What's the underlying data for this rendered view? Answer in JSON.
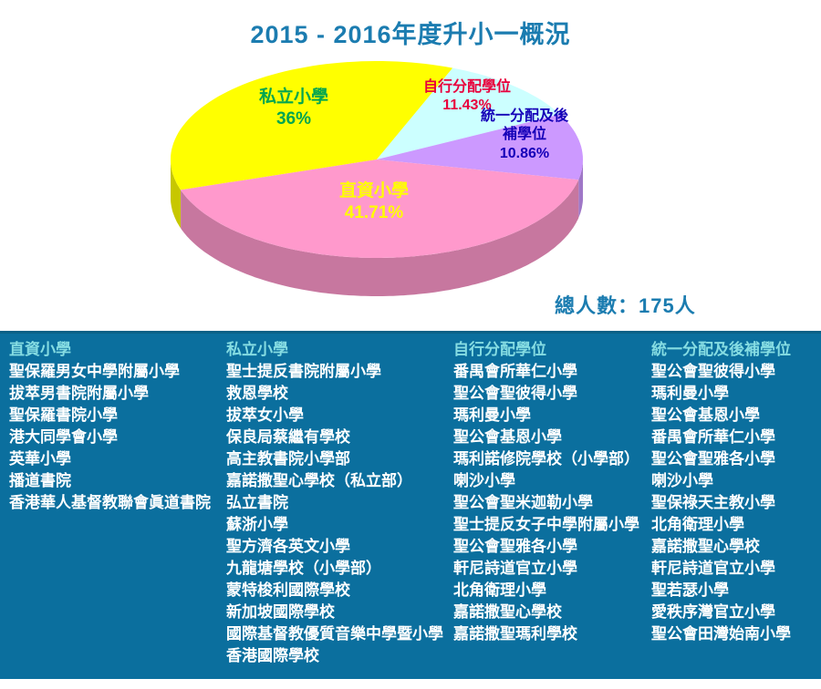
{
  "title": "2015 - 2016年度升小一概況",
  "total_label": "總人數：175人",
  "chart_data": {
    "type": "pie",
    "style": "3d",
    "title": "2015 - 2016年度升小一概況",
    "start_angle_deg": 198,
    "legend_position": "none",
    "slices": [
      {
        "label": "私立小學",
        "value": 36,
        "pct_label": "36%",
        "color": "#FFFF00",
        "label_color": "#00A550"
      },
      {
        "label": "自行分配學位",
        "value": 11.43,
        "pct_label": "11.43%",
        "color": "#CCFFFF",
        "label_color": "#E8003C"
      },
      {
        "label": "統一分配及後補學位",
        "value": 10.86,
        "pct_label": "10.86%",
        "color": "#CC99FF",
        "label_color": "#1500B8"
      },
      {
        "label": "直資小學",
        "value": 41.71,
        "pct_label": "41.71%",
        "color": "#FF99CC",
        "label_color": "#FFFF00"
      }
    ],
    "annotation": "總人數：175人"
  },
  "columns": [
    {
      "header": "直資小學",
      "schools": [
        "聖保羅男女中學附屬小學",
        "拔萃男書院附屬小學",
        "聖保羅書院小學",
        "港大同學會小學",
        "英華小學",
        "播道書院",
        "香港華人基督教聯會眞道書院"
      ]
    },
    {
      "header": "私立小學",
      "schools": [
        "聖士提反書院附屬小學",
        "救恩學校",
        "拔萃女小學",
        "保良局蔡繼有學校",
        "高主教書院小學部",
        "嘉諾撒聖心學校（私立部）",
        "弘立書院",
        "蘇浙小學",
        "聖方濟各英文小學",
        "九龍塘學校（小學部）",
        "蒙特梭利國際學校",
        "新加坡國際學校",
        "國際基督教優質音樂中學暨小學",
        "香港國際學校"
      ]
    },
    {
      "header": "自行分配學位",
      "schools": [
        "番禺會所華仁小學",
        "聖公會聖彼得小學",
        "瑪利曼小學",
        "聖公會基恩小學",
        "瑪利諾修院學校（小學部）",
        "喇沙小學",
        "聖公會聖米迦勒小學",
        "聖士提反女子中學附屬小學",
        "聖公會聖雅各小學",
        "軒尼詩道官立小學",
        "北角衛理小學",
        "嘉諾撒聖心學校",
        "嘉諾撒聖瑪利學校"
      ]
    },
    {
      "header": "統一分配及後補學位",
      "schools": [
        "聖公會聖彼得小學",
        "瑪利曼小學",
        "聖公會基恩小學",
        "番禺會所華仁小學",
        "聖公會聖雅各小學",
        "喇沙小學",
        "聖保祿天主教小學",
        "北角衛理小學",
        "嘉諾撒聖心學校",
        "軒尼詩道官立小學",
        "聖若瑟小學",
        "愛秩序灣官立小學",
        "聖公會田灣始南小學"
      ]
    }
  ],
  "colors": {
    "title": "#1B7CB0",
    "panel_bg": "#0B6F9E",
    "panel_header": "#85DCE2",
    "panel_item": "#FFFFFF",
    "background": "#FFFFFF"
  }
}
